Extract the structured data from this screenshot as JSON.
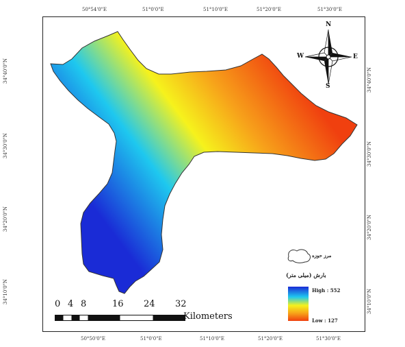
{
  "map": {
    "ticks_top": [
      "50°54'0\"E",
      "51°0'0\"E",
      "51°10'0\"E",
      "51°20'0\"E",
      "51°30'0\"E"
    ],
    "ticks_bottom": [
      "50°50'0\"E",
      "51°0'0\"E",
      "51°10'0\"E",
      "51°20'0\"E",
      "51°30'0\"E"
    ],
    "ticks_left": [
      "34°40'0\"N",
      "34°30'0\"N",
      "34°20'0\"N",
      "34°10'0\"N"
    ],
    "ticks_right": [
      "34°40'0\"N",
      "34°30'0\"N",
      "34°20'0\"N",
      "34°10'0\"N"
    ],
    "basin_colors": {
      "high": "#1a2bd6",
      "mid_low": "#1ec8ef",
      "mid": "#f6f21c",
      "mid_high": "#f7a11a",
      "low": "#f0400f"
    }
  },
  "north_arrow": {
    "n": "N",
    "s": "S",
    "e": "E",
    "w": "W"
  },
  "legend": {
    "boundary_label": "مرز حوزه",
    "ramp_title": "بارش (میلی متر)",
    "high_label": "High : 552",
    "low_label": "Low : 127"
  },
  "scale_bar": {
    "numbers": [
      "0",
      "4",
      "8",
      "16",
      "24",
      "32"
    ],
    "unit": "Kilometers"
  }
}
